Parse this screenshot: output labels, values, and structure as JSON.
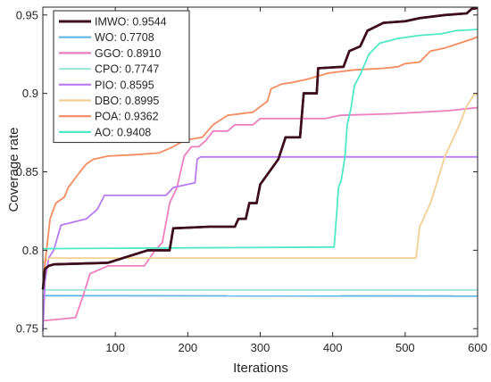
{
  "chart_data": {
    "type": "line",
    "title": "",
    "xlabel": "Iterations",
    "ylabel": "Coverage rate",
    "xlim": [
      0,
      600
    ],
    "ylim": [
      0.745,
      0.955
    ],
    "xticks": [
      100,
      200,
      300,
      400,
      500,
      600
    ],
    "yticks": [
      0.75,
      0.8,
      0.85,
      0.9,
      0.95
    ],
    "ytick_labels": [
      "0.75",
      "0.8",
      "0.85",
      "0.9",
      "0.95"
    ],
    "grid": false,
    "legend_position": "top-left",
    "series": [
      {
        "name": "IMWO: 0.9544",
        "color": "#3d0d1c",
        "points": [
          [
            0,
            0.775
          ],
          [
            3,
            0.788
          ],
          [
            8,
            0.79
          ],
          [
            15,
            0.791
          ],
          [
            90,
            0.792
          ],
          [
            145,
            0.8
          ],
          [
            175,
            0.8
          ],
          [
            180,
            0.814
          ],
          [
            230,
            0.815
          ],
          [
            265,
            0.815
          ],
          [
            270,
            0.82
          ],
          [
            280,
            0.82
          ],
          [
            285,
            0.83
          ],
          [
            295,
            0.83
          ],
          [
            300,
            0.842
          ],
          [
            325,
            0.858
          ],
          [
            335,
            0.872
          ],
          [
            355,
            0.872
          ],
          [
            360,
            0.9
          ],
          [
            378,
            0.9
          ],
          [
            380,
            0.916
          ],
          [
            415,
            0.917
          ],
          [
            423,
            0.927
          ],
          [
            438,
            0.93
          ],
          [
            448,
            0.94
          ],
          [
            470,
            0.945
          ],
          [
            500,
            0.946
          ],
          [
            520,
            0.948
          ],
          [
            555,
            0.95
          ],
          [
            585,
            0.951
          ],
          [
            592,
            0.954
          ],
          [
            600,
            0.9544
          ]
        ]
      },
      {
        "name": "WO: 0.7708",
        "color": "#5fb4e8",
        "points": [
          [
            0,
            0.771
          ],
          [
            600,
            0.7708
          ]
        ]
      },
      {
        "name": "GGO: 0.8910",
        "color": "#ee7fbf",
        "points": [
          [
            0,
            0.755
          ],
          [
            45,
            0.757
          ],
          [
            55,
            0.77
          ],
          [
            65,
            0.785
          ],
          [
            90,
            0.79
          ],
          [
            140,
            0.79
          ],
          [
            155,
            0.8
          ],
          [
            165,
            0.805
          ],
          [
            175,
            0.83
          ],
          [
            185,
            0.84
          ],
          [
            195,
            0.86
          ],
          [
            205,
            0.866
          ],
          [
            215,
            0.866
          ],
          [
            225,
            0.87
          ],
          [
            235,
            0.876
          ],
          [
            255,
            0.876
          ],
          [
            265,
            0.88
          ],
          [
            290,
            0.88
          ],
          [
            300,
            0.884
          ],
          [
            390,
            0.884
          ],
          [
            410,
            0.886
          ],
          [
            480,
            0.887
          ],
          [
            560,
            0.889
          ],
          [
            600,
            0.891
          ]
        ]
      },
      {
        "name": "CPO: 0.7747",
        "color": "#9fe7d6",
        "points": [
          [
            0,
            0.7747
          ],
          [
            600,
            0.7747
          ]
        ]
      },
      {
        "name": "PIO: 0.8595",
        "color": "#b77cf0",
        "points": [
          [
            0,
            0.748
          ],
          [
            3,
            0.78
          ],
          [
            8,
            0.795
          ],
          [
            15,
            0.8
          ],
          [
            25,
            0.816
          ],
          [
            60,
            0.82
          ],
          [
            75,
            0.826
          ],
          [
            85,
            0.835
          ],
          [
            170,
            0.835
          ],
          [
            180,
            0.84
          ],
          [
            210,
            0.843
          ],
          [
            213,
            0.858
          ],
          [
            218,
            0.8595
          ],
          [
            600,
            0.8595
          ]
        ]
      },
      {
        "name": "DBO: 0.8995",
        "color": "#f2cf95",
        "points": [
          [
            0,
            0.792
          ],
          [
            10,
            0.795
          ],
          [
            515,
            0.795
          ],
          [
            520,
            0.815
          ],
          [
            535,
            0.83
          ],
          [
            545,
            0.845
          ],
          [
            555,
            0.86
          ],
          [
            565,
            0.87
          ],
          [
            575,
            0.88
          ],
          [
            585,
            0.892
          ],
          [
            595,
            0.899
          ],
          [
            600,
            0.8995
          ]
        ]
      },
      {
        "name": "POA: 0.9362",
        "color": "#f58c5f",
        "points": [
          [
            0,
            0.779
          ],
          [
            5,
            0.8
          ],
          [
            10,
            0.82
          ],
          [
            18,
            0.83
          ],
          [
            30,
            0.834
          ],
          [
            35,
            0.84
          ],
          [
            48,
            0.848
          ],
          [
            60,
            0.855
          ],
          [
            70,
            0.858
          ],
          [
            90,
            0.86
          ],
          [
            130,
            0.861
          ],
          [
            160,
            0.862
          ],
          [
            180,
            0.866
          ],
          [
            195,
            0.87
          ],
          [
            220,
            0.872
          ],
          [
            235,
            0.88
          ],
          [
            255,
            0.886
          ],
          [
            290,
            0.888
          ],
          [
            310,
            0.895
          ],
          [
            315,
            0.903
          ],
          [
            330,
            0.906
          ],
          [
            345,
            0.907
          ],
          [
            365,
            0.909
          ],
          [
            395,
            0.913
          ],
          [
            430,
            0.915
          ],
          [
            470,
            0.916
          ],
          [
            490,
            0.917
          ],
          [
            500,
            0.919
          ],
          [
            520,
            0.92
          ],
          [
            535,
            0.927
          ],
          [
            555,
            0.929
          ],
          [
            575,
            0.932
          ],
          [
            595,
            0.935
          ],
          [
            600,
            0.9362
          ]
        ]
      },
      {
        "name": "AO: 0.9408",
        "color": "#4fe8c8",
        "points": [
          [
            0,
            0.801
          ],
          [
            402,
            0.802
          ],
          [
            405,
            0.82
          ],
          [
            408,
            0.84
          ],
          [
            412,
            0.845
          ],
          [
            417,
            0.86
          ],
          [
            420,
            0.88
          ],
          [
            425,
            0.89
          ],
          [
            430,
            0.905
          ],
          [
            438,
            0.912
          ],
          [
            450,
            0.925
          ],
          [
            465,
            0.932
          ],
          [
            490,
            0.935
          ],
          [
            520,
            0.937
          ],
          [
            550,
            0.938
          ],
          [
            570,
            0.94
          ],
          [
            600,
            0.9408
          ]
        ]
      }
    ]
  }
}
